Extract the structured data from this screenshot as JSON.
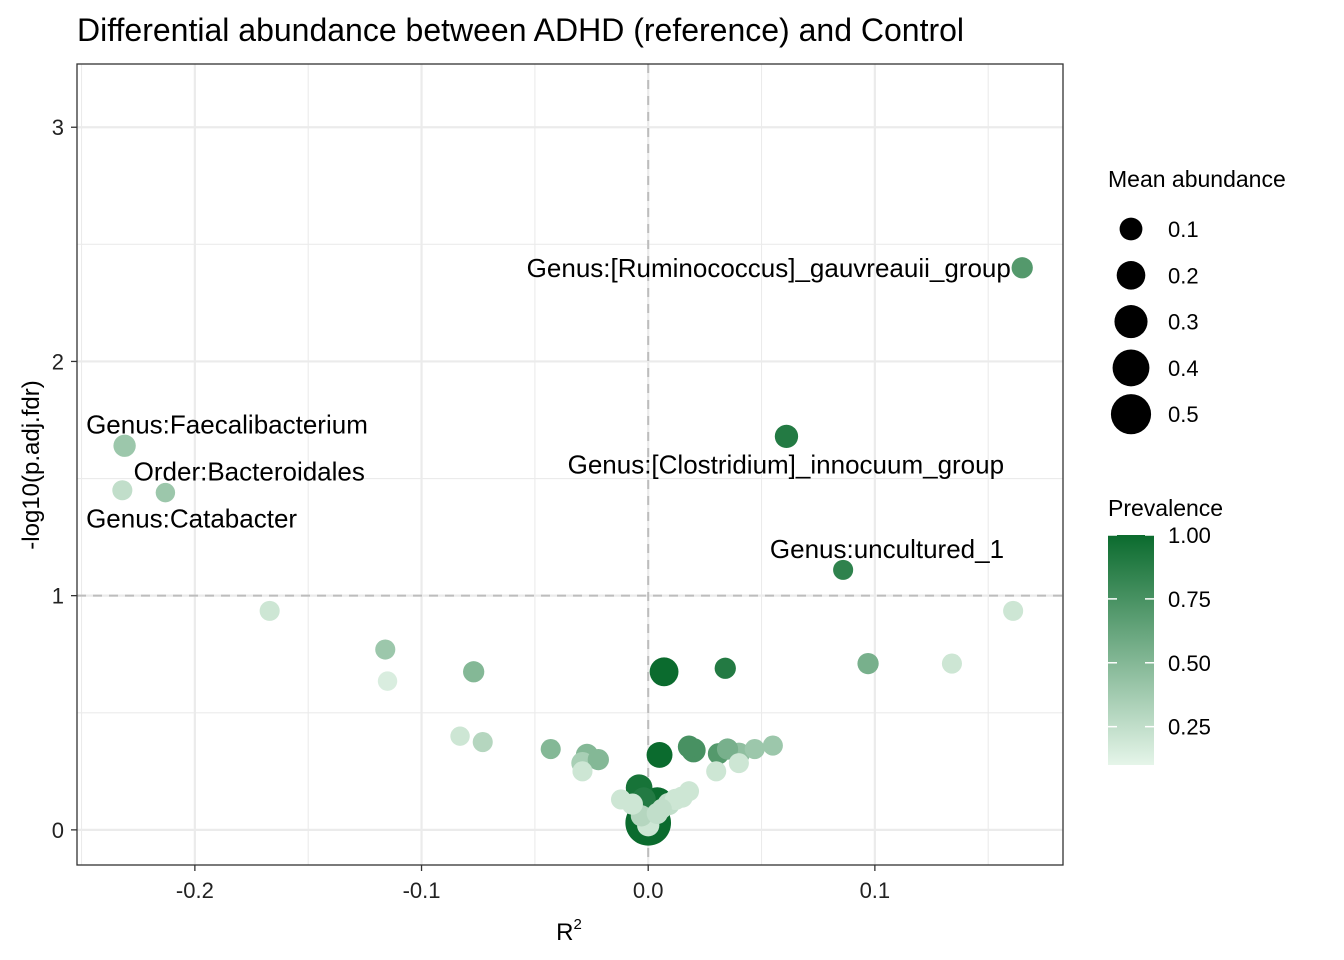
{
  "chart_data": {
    "type": "scatter",
    "title": "Differential abundance between ADHD (reference) and Control",
    "xlabel": "R",
    "xlabel_superscript": "2",
    "ylabel": "-log10(p.adj.fdr)",
    "xlim": [
      -0.252,
      0.183
    ],
    "ylim": [
      -0.15,
      3.27
    ],
    "x_ticks": [
      -0.2,
      -0.1,
      0.0,
      0.1
    ],
    "x_tick_labels": [
      "-0.2",
      "-0.1",
      "0.0",
      "0.1"
    ],
    "y_ticks": [
      0,
      1,
      2,
      3
    ],
    "y_tick_labels": [
      "0",
      "1",
      "2",
      "3"
    ],
    "grid": true,
    "reference_lines": {
      "x": 0,
      "y": 1
    },
    "colors": {
      "low": "#e5f5e9",
      "high": "#0b6b2e",
      "ref_line": "#bdbdbd",
      "grid": "#ebebeb",
      "panel_border": "#333333"
    },
    "points": [
      {
        "x": 0.0,
        "y": 0.03,
        "abundance": 0.5,
        "prevalence": 1.0
      },
      {
        "x": 0.007,
        "y": 0.675,
        "abundance": 0.14,
        "prevalence": 1.0
      },
      {
        "x": 0.005,
        "y": 0.32,
        "abundance": 0.1,
        "prevalence": 1.0
      },
      {
        "x": 0.004,
        "y": 0.11,
        "abundance": 0.22,
        "prevalence": 1.0
      },
      {
        "x": -0.004,
        "y": 0.18,
        "abundance": 0.11,
        "prevalence": 0.95
      },
      {
        "x": -0.002,
        "y": 0.13,
        "abundance": 0.08,
        "prevalence": 0.9
      },
      {
        "x": 0.0,
        "y": 0.02,
        "abundance": 0.06,
        "prevalence": 0.2
      },
      {
        "x": -0.003,
        "y": 0.06,
        "abundance": 0.05,
        "prevalence": 0.3
      },
      {
        "x": 0.004,
        "y": 0.07,
        "abundance": 0.05,
        "prevalence": 0.25
      },
      {
        "x": -0.007,
        "y": 0.11,
        "abundance": 0.05,
        "prevalence": 0.2
      },
      {
        "x": 0.009,
        "y": 0.11,
        "abundance": 0.06,
        "prevalence": 0.25
      },
      {
        "x": 0.012,
        "y": 0.13,
        "abundance": 0.05,
        "prevalence": 0.2
      },
      {
        "x": 0.015,
        "y": 0.14,
        "abundance": 0.05,
        "prevalence": 0.2
      },
      {
        "x": 0.018,
        "y": 0.165,
        "abundance": 0.04,
        "prevalence": 0.2
      },
      {
        "x": -0.012,
        "y": 0.13,
        "abundance": 0.04,
        "prevalence": 0.2
      },
      {
        "x": 0.006,
        "y": 0.09,
        "abundance": 0.04,
        "prevalence": 0.25
      },
      {
        "x": 0.018,
        "y": 0.355,
        "abundance": 0.06,
        "prevalence": 0.75
      },
      {
        "x": 0.02,
        "y": 0.34,
        "abundance": 0.08,
        "prevalence": 0.75
      },
      {
        "x": 0.031,
        "y": 0.325,
        "abundance": 0.05,
        "prevalence": 0.7
      },
      {
        "x": 0.035,
        "y": 0.345,
        "abundance": 0.05,
        "prevalence": 0.55
      },
      {
        "x": 0.04,
        "y": 0.325,
        "abundance": 0.06,
        "prevalence": 0.45
      },
      {
        "x": 0.047,
        "y": 0.345,
        "abundance": 0.04,
        "prevalence": 0.4
      },
      {
        "x": 0.055,
        "y": 0.36,
        "abundance": 0.04,
        "prevalence": 0.4
      },
      {
        "x": 0.04,
        "y": 0.285,
        "abundance": 0.04,
        "prevalence": 0.2
      },
      {
        "x": 0.03,
        "y": 0.25,
        "abundance": 0.04,
        "prevalence": 0.2
      },
      {
        "x": 0.034,
        "y": 0.69,
        "abundance": 0.05,
        "prevalence": 0.9
      },
      {
        "x": 0.061,
        "y": 1.68,
        "abundance": 0.07,
        "prevalence": 0.9
      },
      {
        "x": 0.086,
        "y": 1.11,
        "abundance": 0.04,
        "prevalence": 0.85
      },
      {
        "x": 0.165,
        "y": 2.4,
        "abundance": 0.05,
        "prevalence": 0.7
      },
      {
        "x": 0.097,
        "y": 0.71,
        "abundance": 0.05,
        "prevalence": 0.55
      },
      {
        "x": 0.134,
        "y": 0.71,
        "abundance": 0.04,
        "prevalence": 0.2
      },
      {
        "x": 0.161,
        "y": 0.935,
        "abundance": 0.04,
        "prevalence": 0.2
      },
      {
        "x": -0.027,
        "y": 0.32,
        "abundance": 0.06,
        "prevalence": 0.5
      },
      {
        "x": -0.029,
        "y": 0.285,
        "abundance": 0.06,
        "prevalence": 0.35
      },
      {
        "x": -0.022,
        "y": 0.3,
        "abundance": 0.05,
        "prevalence": 0.5
      },
      {
        "x": -0.043,
        "y": 0.345,
        "abundance": 0.04,
        "prevalence": 0.5
      },
      {
        "x": -0.029,
        "y": 0.25,
        "abundance": 0.04,
        "prevalence": 0.2
      },
      {
        "x": -0.073,
        "y": 0.375,
        "abundance": 0.04,
        "prevalence": 0.3
      },
      {
        "x": -0.083,
        "y": 0.4,
        "abundance": 0.035,
        "prevalence": 0.2
      },
      {
        "x": -0.077,
        "y": 0.675,
        "abundance": 0.05,
        "prevalence": 0.5
      },
      {
        "x": -0.116,
        "y": 0.77,
        "abundance": 0.04,
        "prevalence": 0.4
      },
      {
        "x": -0.115,
        "y": 0.635,
        "abundance": 0.035,
        "prevalence": 0.15
      },
      {
        "x": -0.167,
        "y": 0.935,
        "abundance": 0.04,
        "prevalence": 0.2
      },
      {
        "x": -0.231,
        "y": 1.64,
        "abundance": 0.06,
        "prevalence": 0.4
      },
      {
        "x": -0.232,
        "y": 1.45,
        "abundance": 0.04,
        "prevalence": 0.25
      },
      {
        "x": -0.213,
        "y": 1.44,
        "abundance": 0.035,
        "prevalence": 0.4
      }
    ],
    "annotations": [
      {
        "text": "Genus:[Ruminococcus]_gauvreauii_group",
        "x": 0.16,
        "y": 2.4,
        "anchor": "end"
      },
      {
        "text": "Genus:Faecalibacterium",
        "x": -0.248,
        "y": 1.73,
        "anchor": "start"
      },
      {
        "text": "Order:Bacteroidales",
        "x": -0.227,
        "y": 1.53,
        "anchor": "start"
      },
      {
        "text": "Genus:Catabacter",
        "x": -0.248,
        "y": 1.33,
        "anchor": "start"
      },
      {
        "text": "Genus:[Clostridium]_innocuum_group",
        "x": 0.157,
        "y": 1.56,
        "anchor": "end"
      },
      {
        "text": "Genus:uncultured_1",
        "x": 0.157,
        "y": 1.2,
        "anchor": "end"
      }
    ],
    "legends": {
      "size": {
        "title": "Mean abundance",
        "values": [
          0.1,
          0.2,
          0.3,
          0.4,
          0.5
        ],
        "labels": [
          "0.1",
          "0.2",
          "0.3",
          "0.4",
          "0.5"
        ]
      },
      "color": {
        "title": "Prevalence",
        "range": [
          0.1,
          1.0
        ],
        "values": [
          0.25,
          0.5,
          0.75,
          1.0
        ],
        "labels": [
          "0.25",
          "0.50",
          "0.75",
          "1.00"
        ]
      }
    },
    "legend_position": "right"
  }
}
